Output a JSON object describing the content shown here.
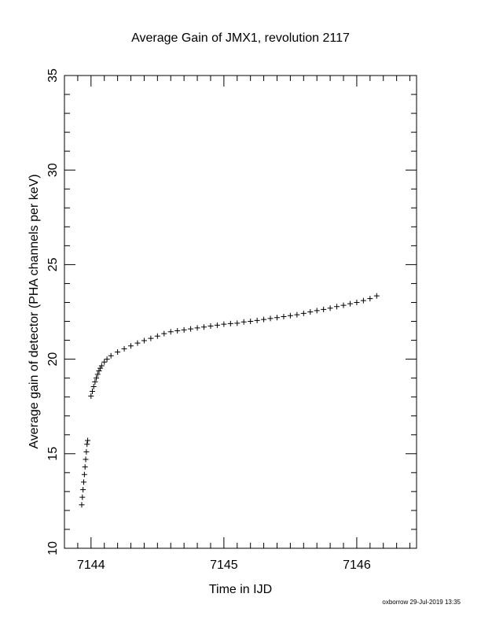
{
  "chart_data": {
    "type": "scatter",
    "title": "Average Gain of JMX1, revolution 2117",
    "xlabel": "Time in IJD",
    "ylabel": "Average gain of detector (PHA channels per keV)",
    "xlim": [
      7143.8,
      7146.45
    ],
    "ylim": [
      10,
      35
    ],
    "x_ticks": [
      7144,
      7145,
      7146
    ],
    "x_tick_labels": [
      "7144",
      "7145",
      "7146"
    ],
    "y_ticks": [
      10,
      15,
      20,
      25,
      30,
      35
    ],
    "y_tick_labels": [
      "10",
      "15",
      "20",
      "25",
      "30",
      "35"
    ],
    "marker": "+",
    "grid": false,
    "series": [
      {
        "points": [
          [
            7143.93,
            12.3
          ],
          [
            7143.935,
            12.7
          ],
          [
            7143.94,
            13.1
          ],
          [
            7143.945,
            13.5
          ],
          [
            7143.95,
            13.9
          ],
          [
            7143.955,
            14.3
          ],
          [
            7143.96,
            14.7
          ],
          [
            7143.965,
            15.1
          ],
          [
            7143.97,
            15.5
          ],
          [
            7143.975,
            15.7
          ],
          [
            7144.0,
            18.05
          ],
          [
            7144.01,
            18.3
          ],
          [
            7144.02,
            18.55
          ],
          [
            7144.03,
            18.8
          ],
          [
            7144.04,
            19.0
          ],
          [
            7144.05,
            19.2
          ],
          [
            7144.06,
            19.38
          ],
          [
            7144.07,
            19.52
          ],
          [
            7144.08,
            19.65
          ],
          [
            7144.1,
            19.85
          ],
          [
            7144.12,
            20.0
          ],
          [
            7144.15,
            20.18
          ],
          [
            7144.2,
            20.38
          ],
          [
            7144.25,
            20.55
          ],
          [
            7144.3,
            20.7
          ],
          [
            7144.35,
            20.85
          ],
          [
            7144.4,
            20.98
          ],
          [
            7144.45,
            21.1
          ],
          [
            7144.5,
            21.22
          ],
          [
            7144.55,
            21.35
          ],
          [
            7144.6,
            21.45
          ],
          [
            7144.65,
            21.5
          ],
          [
            7144.7,
            21.55
          ],
          [
            7144.75,
            21.6
          ],
          [
            7144.8,
            21.65
          ],
          [
            7144.85,
            21.7
          ],
          [
            7144.9,
            21.75
          ],
          [
            7144.95,
            21.8
          ],
          [
            7145.0,
            21.85
          ],
          [
            7145.05,
            21.88
          ],
          [
            7145.1,
            21.9
          ],
          [
            7145.15,
            21.97
          ],
          [
            7145.2,
            22.0
          ],
          [
            7145.25,
            22.05
          ],
          [
            7145.3,
            22.1
          ],
          [
            7145.35,
            22.15
          ],
          [
            7145.4,
            22.2
          ],
          [
            7145.45,
            22.25
          ],
          [
            7145.5,
            22.3
          ],
          [
            7145.55,
            22.35
          ],
          [
            7145.6,
            22.42
          ],
          [
            7145.65,
            22.5
          ],
          [
            7145.7,
            22.57
          ],
          [
            7145.75,
            22.63
          ],
          [
            7145.8,
            22.7
          ],
          [
            7145.85,
            22.78
          ],
          [
            7145.9,
            22.85
          ],
          [
            7145.95,
            22.93
          ],
          [
            7146.0,
            23.0
          ],
          [
            7146.05,
            23.1
          ],
          [
            7146.1,
            23.2
          ],
          [
            7146.15,
            23.35
          ]
        ]
      }
    ]
  },
  "footer": {
    "credit": "oxborrow 29-Jul-2019 13:35"
  }
}
